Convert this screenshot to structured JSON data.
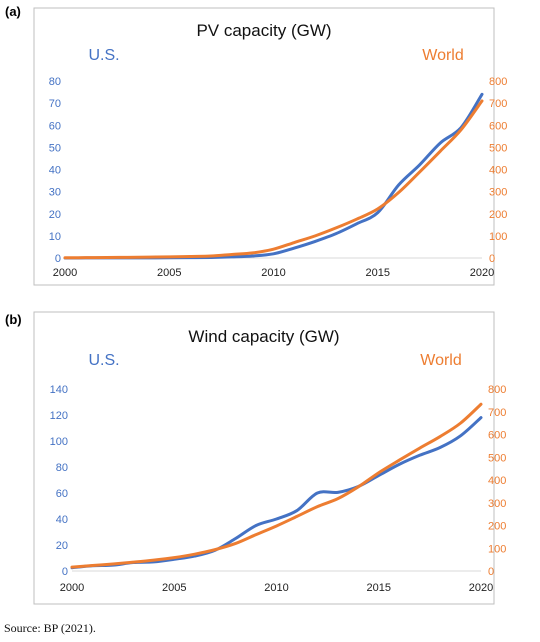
{
  "source_note": "Source: BP (2021).",
  "colors": {
    "us": "#4472C4",
    "world": "#ED7D31",
    "frame": "#BFBFBF",
    "axis": "#D9D9D9",
    "text": "#333333"
  },
  "chart_data": [
    {
      "panel": "(a)",
      "type": "line",
      "title": "PV capacity (GW)",
      "left_legend": "U.S.",
      "right_legend": "World",
      "x_ticks": [
        "2000",
        "2005",
        "2010",
        "2015",
        "2020"
      ],
      "xlim": [
        2000,
        2020
      ],
      "y_left_ticks": [
        "0",
        "10",
        "20",
        "30",
        "40",
        "50",
        "60",
        "70",
        "80"
      ],
      "y_right_ticks": [
        "0",
        "100",
        "200",
        "300",
        "400",
        "500",
        "600",
        "700",
        "800"
      ],
      "ylim_left": [
        0,
        80
      ],
      "ylim_right": [
        0,
        800
      ],
      "x": [
        2000,
        2001,
        2002,
        2003,
        2004,
        2005,
        2006,
        2007,
        2008,
        2009,
        2010,
        2011,
        2012,
        2013,
        2014,
        2015,
        2016,
        2017,
        2018,
        2019,
        2020
      ],
      "series": [
        {
          "name": "U.S.",
          "axis": "left",
          "values": [
            0.02,
            0.03,
            0.04,
            0.05,
            0.07,
            0.1,
            0.15,
            0.25,
            0.5,
            0.9,
            1.9,
            4.5,
            7.5,
            11,
            15.5,
            20.5,
            33,
            42,
            52,
            59,
            74
          ]
        },
        {
          "name": "World",
          "axis": "right",
          "values": [
            1,
            1.5,
            2,
            3,
            4,
            5,
            7,
            9,
            16,
            23,
            40,
            70,
            100,
            136,
            176,
            222,
            296,
            388,
            483,
            580,
            710
          ]
        }
      ]
    },
    {
      "panel": "(b)",
      "type": "line",
      "title": "Wind capacity (GW)",
      "left_legend": "U.S.",
      "right_legend": "World",
      "x_ticks": [
        "2000",
        "2005",
        "2010",
        "2015",
        "2020"
      ],
      "xlim": [
        2000,
        2020
      ],
      "y_left_ticks": [
        "0",
        "20",
        "40",
        "60",
        "80",
        "100",
        "120",
        "140"
      ],
      "y_right_ticks": [
        "0",
        "100",
        "200",
        "300",
        "400",
        "500",
        "600",
        "700",
        "800"
      ],
      "ylim_left": [
        0,
        140
      ],
      "ylim_right": [
        0,
        800
      ],
      "x": [
        2000,
        2001,
        2002,
        2003,
        2004,
        2005,
        2006,
        2007,
        2008,
        2009,
        2010,
        2011,
        2012,
        2013,
        2014,
        2015,
        2016,
        2017,
        2018,
        2019,
        2020
      ],
      "series": [
        {
          "name": "U.S.",
          "axis": "left",
          "values": [
            2.5,
            4,
            4.5,
            6.5,
            7,
            9,
            11.5,
            16,
            25,
            35,
            40,
            46.5,
            60,
            60.5,
            65,
            73.5,
            82,
            89,
            95,
            104,
            118
          ]
        },
        {
          "name": "World",
          "axis": "right",
          "values": [
            17,
            24,
            31,
            39,
            48,
            59,
            74,
            94,
            121,
            160,
            198,
            240,
            283,
            318,
            370,
            432,
            487,
            540,
            591,
            650,
            733
          ]
        }
      ]
    }
  ]
}
